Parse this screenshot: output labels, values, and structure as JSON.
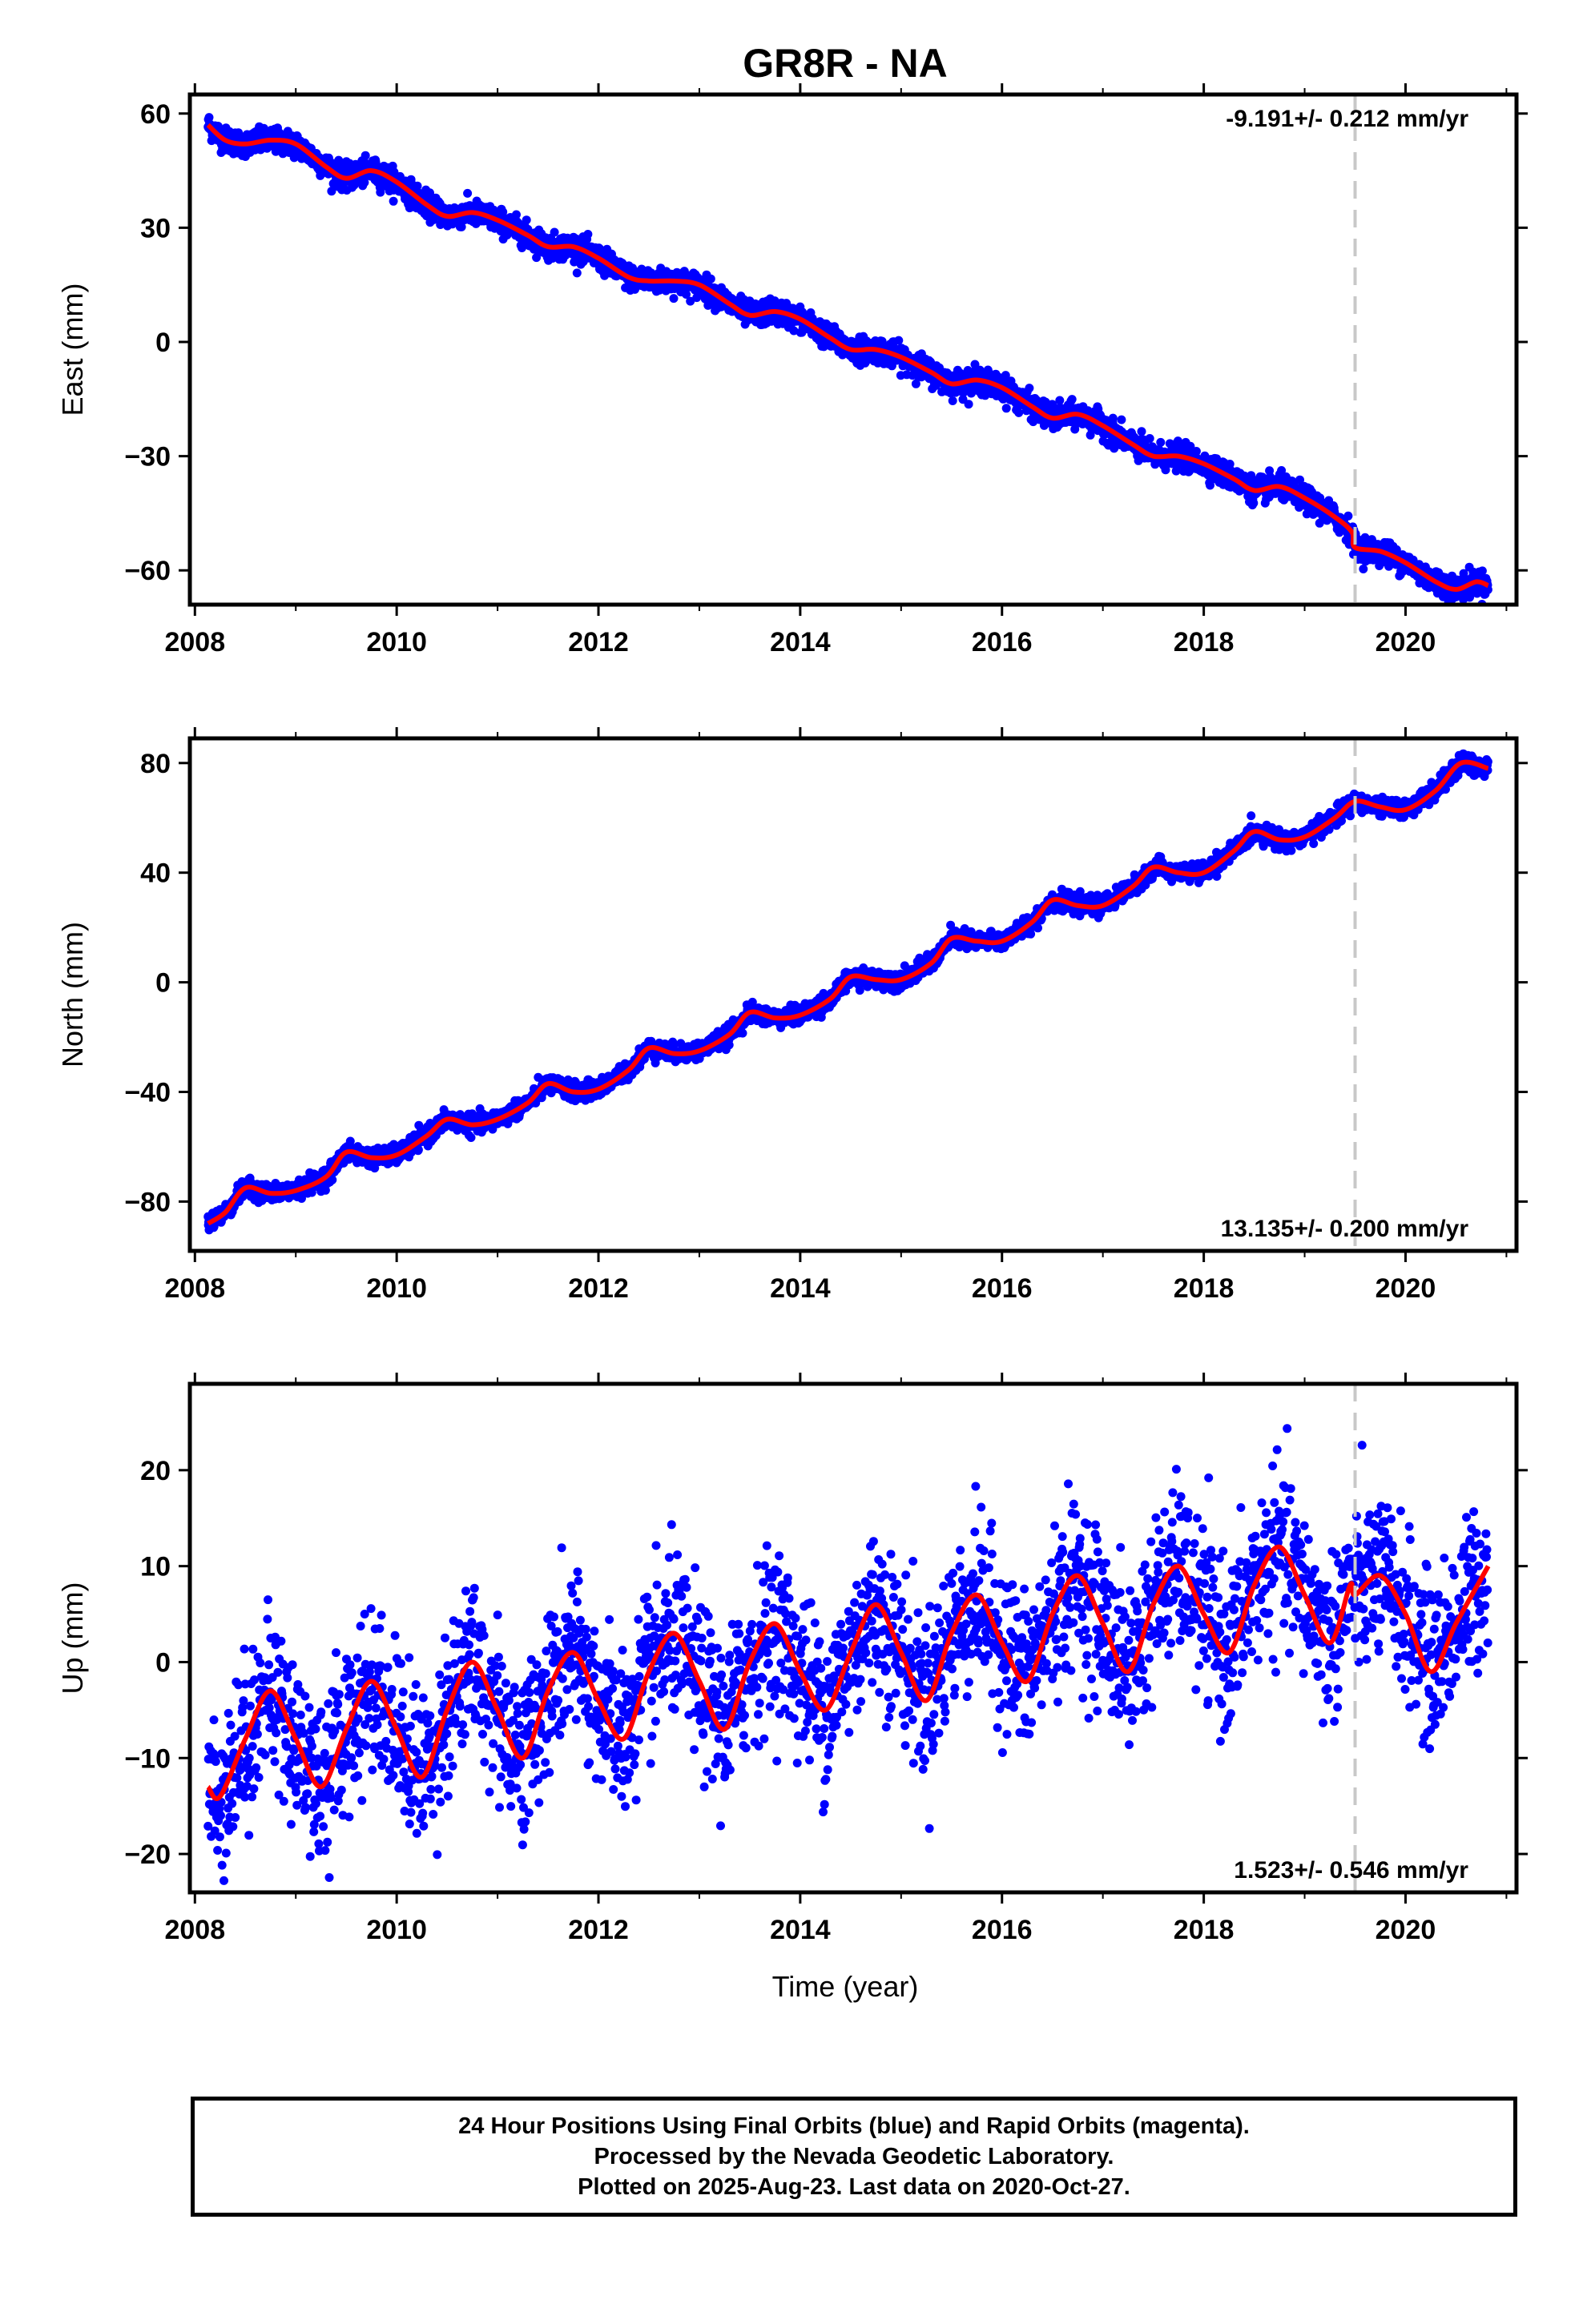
{
  "title": "GR8R - NA",
  "xlabel": "Time (year)",
  "colors": {
    "points": "#0000ff",
    "fit": "#ff0000",
    "offset_line": "#c8c8c8",
    "frame": "#000000"
  },
  "chart_data": [
    {
      "type": "scatter",
      "panel": "east",
      "ylabel": "East (mm)",
      "rate": "-9.191+/- 0.212 mm/yr",
      "xlim": [
        2007.95,
        2021.1
      ],
      "ylim": [
        -69,
        65
      ],
      "xticks": [
        "2008",
        "2010",
        "2012",
        "2014",
        "2016",
        "2018",
        "2020"
      ],
      "yticks": [
        "60",
        "30",
        "0",
        "−30",
        "−60"
      ],
      "offset_epoch": 2019.5,
      "series": [
        {
          "x": [
            2008.13,
            2008.3,
            2008.5,
            2008.75,
            2009.0,
            2009.3,
            2009.5,
            2009.75,
            2010.0,
            2010.3,
            2010.5,
            2010.75,
            2011.0,
            2011.3,
            2011.5,
            2011.75,
            2012.0,
            2012.3,
            2012.5,
            2012.75,
            2013.0,
            2013.3,
            2013.5,
            2013.75,
            2014.0,
            2014.3,
            2014.5,
            2014.75,
            2015.0,
            2015.3,
            2015.5,
            2015.75,
            2016.0,
            2016.3,
            2016.5,
            2016.75,
            2017.0,
            2017.3,
            2017.5,
            2017.75,
            2018.0,
            2018.3,
            2018.5,
            2018.75,
            2019.0,
            2019.3,
            2019.47,
            2019.5,
            2019.75,
            2020.0,
            2020.3,
            2020.5,
            2020.7,
            2020.82
          ],
          "y": [
            57,
            53,
            52,
            53,
            52,
            46,
            43,
            45,
            42,
            36,
            33,
            34,
            32,
            28,
            25,
            25,
            22,
            17,
            16,
            16,
            15,
            10,
            7,
            8,
            6,
            1,
            -2,
            -2,
            -4,
            -8,
            -11,
            -10,
            -12,
            -17,
            -20,
            -19,
            -22,
            -27,
            -30,
            -30,
            -32,
            -36,
            -39,
            -38,
            -41,
            -46,
            -50,
            -54,
            -55,
            -58,
            -63,
            -65,
            -63,
            -64
          ]
        }
      ]
    },
    {
      "type": "scatter",
      "panel": "north",
      "ylabel": "North (mm)",
      "rate": "13.135+/- 0.200 mm/yr",
      "xlim": [
        2007.95,
        2021.1
      ],
      "ylim": [
        -98,
        89
      ],
      "xticks": [
        "2008",
        "2010",
        "2012",
        "2014",
        "2016",
        "2018",
        "2020"
      ],
      "yticks": [
        "80",
        "40",
        "0",
        "−40",
        "−80"
      ],
      "offset_epoch": 2019.5,
      "series": [
        {
          "x": [
            2008.13,
            2008.3,
            2008.5,
            2008.75,
            2009.0,
            2009.3,
            2009.5,
            2009.75,
            2010.0,
            2010.3,
            2010.5,
            2010.75,
            2011.0,
            2011.3,
            2011.5,
            2011.75,
            2012.0,
            2012.3,
            2012.5,
            2012.75,
            2013.0,
            2013.3,
            2013.5,
            2013.75,
            2014.0,
            2014.3,
            2014.5,
            2014.75,
            2015.0,
            2015.3,
            2015.5,
            2015.75,
            2016.0,
            2016.3,
            2016.5,
            2016.75,
            2017.0,
            2017.3,
            2017.5,
            2017.75,
            2018.0,
            2018.3,
            2018.5,
            2018.75,
            2019.0,
            2019.3,
            2019.5,
            2019.75,
            2020.0,
            2020.3,
            2020.55,
            2020.82
          ],
          "y": [
            -88,
            -84,
            -75,
            -77,
            -76,
            -71,
            -62,
            -64,
            -63,
            -56,
            -50,
            -52,
            -50,
            -44,
            -37,
            -40,
            -39,
            -32,
            -24,
            -26,
            -25,
            -19,
            -11,
            -13,
            -12,
            -6,
            2,
            1,
            1,
            7,
            16,
            15,
            15,
            22,
            30,
            28,
            28,
            35,
            42,
            40,
            40,
            48,
            55,
            52,
            53,
            60,
            66,
            64,
            63,
            70,
            80,
            78
          ]
        }
      ]
    },
    {
      "type": "scatter",
      "panel": "up",
      "ylabel": "Up (mm)",
      "rate": "1.523+/- 0.546 mm/yr",
      "xlim": [
        2007.95,
        2021.1
      ],
      "ylim": [
        -24,
        29
      ],
      "xticks": [
        "2008",
        "2010",
        "2012",
        "2014",
        "2016",
        "2018",
        "2020"
      ],
      "yticks": [
        "20",
        "10",
        "0",
        "−10",
        "−20"
      ],
      "offset_epoch": 2019.5,
      "series": [
        {
          "x": [
            2008.13,
            2008.25,
            2008.5,
            2008.75,
            2009.0,
            2009.25,
            2009.5,
            2009.75,
            2010.0,
            2010.25,
            2010.5,
            2010.75,
            2011.0,
            2011.25,
            2011.5,
            2011.75,
            2012.0,
            2012.25,
            2012.5,
            2012.75,
            2013.0,
            2013.25,
            2013.5,
            2013.75,
            2014.0,
            2014.25,
            2014.5,
            2014.75,
            2015.0,
            2015.25,
            2015.5,
            2015.75,
            2016.0,
            2016.25,
            2016.5,
            2016.75,
            2017.0,
            2017.25,
            2017.5,
            2017.75,
            2018.0,
            2018.25,
            2018.5,
            2018.75,
            2019.0,
            2019.25,
            2019.45,
            2019.5,
            2019.75,
            2020.0,
            2020.25,
            2020.5,
            2020.82
          ],
          "y": [
            -13,
            -14,
            -8,
            -3,
            -8,
            -13,
            -7,
            -2,
            -7,
            -12,
            -5,
            0,
            -5,
            -10,
            -3,
            1,
            -4,
            -8,
            -1,
            3,
            -2,
            -7,
            0,
            4,
            -1,
            -5,
            1,
            6,
            1,
            -4,
            3,
            7,
            2,
            -2,
            5,
            9,
            4,
            -1,
            6,
            10,
            5,
            1,
            8,
            12,
            7,
            2,
            8,
            7,
            9,
            5,
            -1,
            4,
            10
          ]
        }
      ]
    }
  ],
  "footer": {
    "line1": "24 Hour Positions Using Final Orbits (blue) and Rapid Orbits (magenta).",
    "line2": "Processed by the Nevada Geodetic Laboratory.",
    "line3": "Plotted on 2025-Aug-23. Last data on 2020-Oct-27."
  }
}
